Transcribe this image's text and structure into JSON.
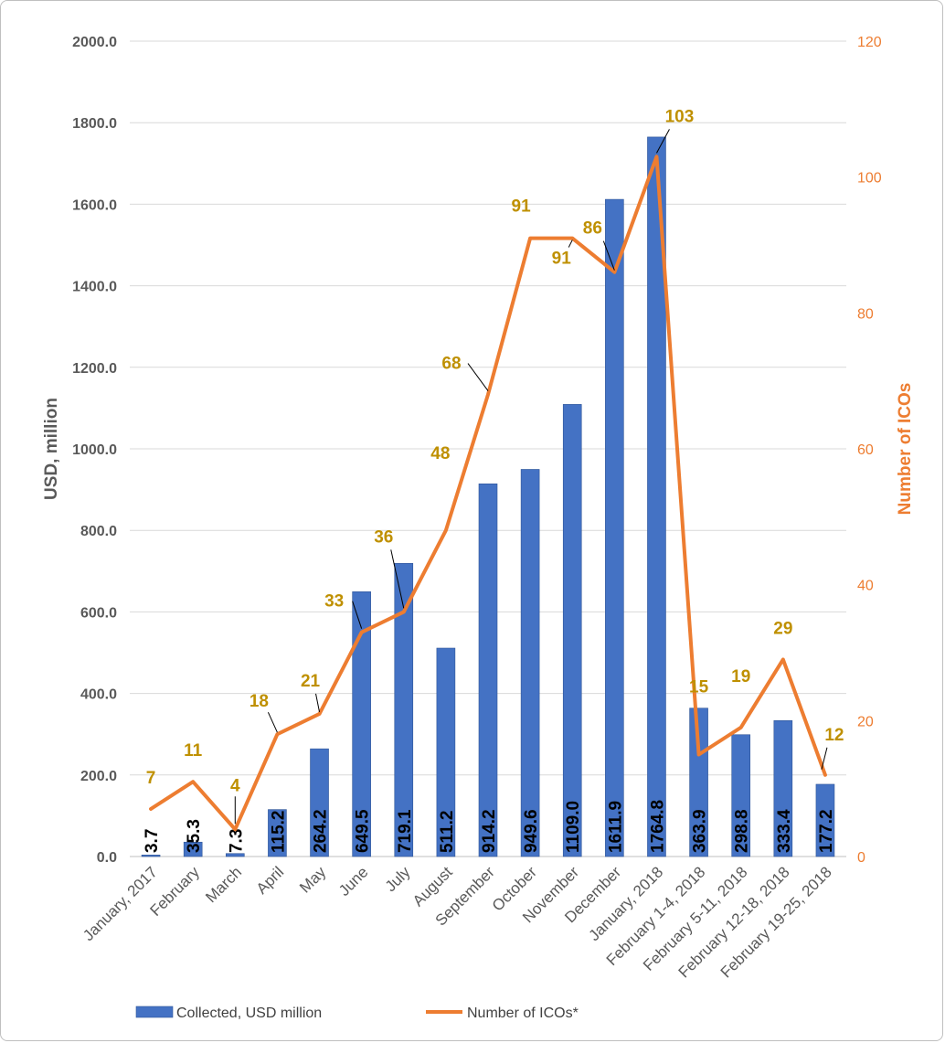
{
  "chart_data": {
    "type": "bar",
    "categories": [
      "January, 2017",
      "February",
      "March",
      "April",
      "May",
      "June",
      "July",
      "August",
      "September",
      "October",
      "November",
      "December",
      "January, 2018",
      "February 1-4, 2018",
      "February 5-11, 2018",
      "February 12-18, 2018",
      "February 19-25, 2018"
    ],
    "series": [
      {
        "name": "Collected, USD million",
        "type": "bar",
        "axis": "left",
        "color": "#4472C4",
        "values": [
          3.7,
          35.3,
          7.3,
          115.2,
          264.2,
          649.5,
          719.1,
          511.2,
          914.2,
          949.6,
          1109.0,
          1611.9,
          1764.8,
          363.9,
          298.8,
          333.4,
          177.2
        ],
        "labels": [
          "3.7",
          "35.3",
          "7.3",
          "115.2",
          "264.2",
          "649.5",
          "719.1",
          "511.2",
          "914.2",
          "949.6",
          "1109.0",
          "1611.9",
          "1764.8",
          "363.9",
          "298.8",
          "333.4",
          "177.2"
        ]
      },
      {
        "name": "Number of ICOs*",
        "type": "line",
        "axis": "right",
        "color": "#ED7D31",
        "values": [
          7,
          11,
          4,
          18,
          21,
          33,
          36,
          48,
          68,
          91,
          91,
          86,
          103,
          15,
          19,
          29,
          12
        ],
        "labels": [
          "7",
          "11",
          "4",
          "18",
          "21",
          "33",
          "36",
          "48",
          "68",
          "91",
          "91",
          "86",
          "103",
          "15",
          "19",
          "29",
          "12"
        ]
      }
    ],
    "ylabel": "USD, million",
    "y2label": "Number of ICOs",
    "ylim": [
      0,
      2000
    ],
    "y2lim": [
      0,
      120
    ],
    "yticks": [
      "0.0",
      "200.0",
      "400.0",
      "600.0",
      "800.0",
      "1000.0",
      "1200.0",
      "1400.0",
      "1600.0",
      "1800.0",
      "2000.0"
    ],
    "y2ticks": [
      "0",
      "20",
      "40",
      "60",
      "80",
      "100",
      "120"
    ],
    "grid": true,
    "legend_position": "bottom",
    "line_label_color": "#BF9000"
  }
}
